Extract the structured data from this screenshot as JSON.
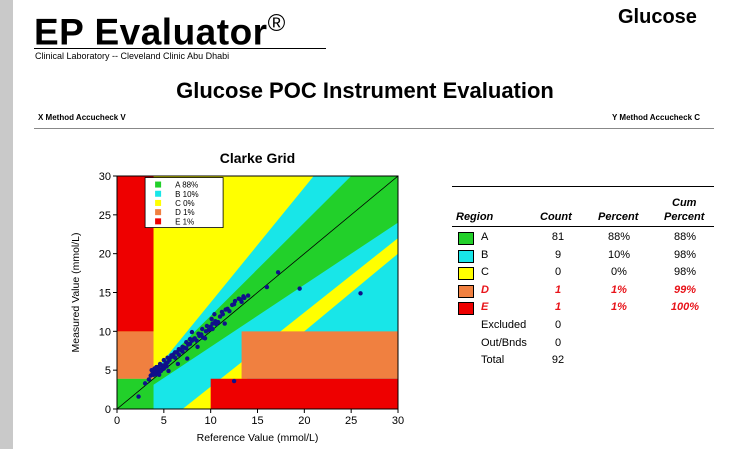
{
  "header": {
    "brand": "EP Evaluator",
    "brand_mark": "®",
    "lab": "Clinical Laboratory -- Cleveland Clinic Abu Dhabi",
    "analyte": "Glucose",
    "title": "Glucose POC Instrument Evaluation",
    "x_method": "X Method  Accucheck V",
    "y_method": "Y Method  Accucheck C"
  },
  "colors": {
    "A": "#22d02a",
    "B": "#18e6e8",
    "C": "#ffff00",
    "D": "#f08040",
    "E": "#ee0000",
    "points": "#10108a"
  },
  "chart_data": {
    "type": "scatter",
    "title": "Clarke Grid",
    "xlabel": "Reference Value (mmol/L)",
    "ylabel": "Measured Value (mmol/L)",
    "xlim": [
      0,
      30
    ],
    "ylim": [
      0,
      30
    ],
    "xticks": [
      0,
      5,
      10,
      15,
      20,
      25,
      30
    ],
    "yticks": [
      0,
      5,
      10,
      15,
      20,
      25,
      30
    ],
    "legend": [
      "A 88%",
      "B 10%",
      "C 0%",
      "D 1%",
      "E 1%"
    ],
    "legend_position": "top-left",
    "grid": false,
    "series": [
      {
        "x": [
          2.3,
          3.0,
          3.4,
          3.6,
          3.8,
          3.9,
          4.0,
          4.1,
          4.2,
          4.3,
          4.4,
          4.5,
          4.6,
          4.7,
          4.8,
          4.9,
          5.0,
          5.1,
          5.2,
          5.3,
          5.4,
          5.6,
          5.8,
          6.0,
          6.2,
          6.4,
          6.6,
          6.8,
          7.0,
          7.2,
          7.4,
          7.6,
          7.8,
          8.0,
          8.2,
          8.5,
          8.8,
          9.0,
          9.2,
          9.5,
          9.8,
          10.0,
          10.2,
          10.5,
          10.8,
          11.0,
          11.3,
          11.6,
          12.0,
          12.3,
          12.6,
          13.0,
          13.3,
          13.6,
          14.0,
          4.2,
          4.6,
          5.0,
          5.4,
          5.8,
          6.2,
          6.6,
          7.0,
          7.4,
          7.8,
          8.3,
          8.7,
          9.1,
          9.6,
          10.1,
          10.6,
          11.2,
          11.8,
          12.5,
          13.2,
          3.7,
          4.5,
          5.5,
          6.5,
          7.5,
          8.6,
          9.4,
          10.4,
          11.5,
          8.0,
          10.2,
          13.5,
          16.0,
          17.2,
          19.5,
          26.0,
          12.5
        ],
        "y": [
          1.6,
          3.3,
          3.8,
          4.3,
          4.6,
          4.4,
          5.2,
          4.8,
          4.5,
          5.0,
          5.4,
          4.7,
          5.1,
          4.9,
          5.6,
          5.3,
          5.2,
          5.6,
          5.9,
          5.5,
          6.0,
          6.3,
          6.7,
          7.0,
          6.6,
          7.3,
          7.0,
          7.6,
          7.4,
          7.9,
          7.8,
          8.3,
          8.4,
          8.8,
          9.0,
          8.8,
          9.4,
          9.6,
          9.2,
          10.0,
          10.2,
          10.6,
          11.0,
          11.3,
          11.2,
          11.9,
          12.2,
          12.8,
          12.6,
          13.4,
          13.9,
          14.2,
          13.8,
          14.3,
          14.6,
          5.4,
          5.8,
          6.3,
          6.6,
          6.9,
          7.3,
          7.7,
          8.0,
          8.6,
          9.0,
          9.1,
          9.7,
          10.3,
          10.7,
          11.6,
          10.9,
          12.5,
          12.9,
          13.5,
          14.1,
          5.0,
          4.4,
          4.9,
          5.8,
          6.5,
          8.0,
          9.1,
          12.2,
          11.0,
          9.9,
          10.3,
          14.5,
          15.7,
          17.6,
          15.5,
          14.9,
          3.6
        ]
      }
    ],
    "table": {
      "headers": {
        "region": "Region",
        "count": "Count",
        "percent": "Percent",
        "cum_line1": "Cum",
        "cum_line2": "Percent"
      },
      "rows": [
        {
          "region": "A",
          "count": "81",
          "percent": "88%",
          "cum": "88%"
        },
        {
          "region": "B",
          "count": "9",
          "percent": "10%",
          "cum": "98%"
        },
        {
          "region": "C",
          "count": "0",
          "percent": "0%",
          "cum": "98%"
        },
        {
          "region": "D",
          "count": "1",
          "percent": "1%",
          "cum": "99%"
        },
        {
          "region": "E",
          "count": "1",
          "percent": "1%",
          "cum": "100%"
        }
      ],
      "summary": [
        {
          "label": "Excluded",
          "value": "0"
        },
        {
          "label": "Out/Bnds",
          "value": "0"
        },
        {
          "label": "Total",
          "value": "92"
        }
      ]
    }
  }
}
